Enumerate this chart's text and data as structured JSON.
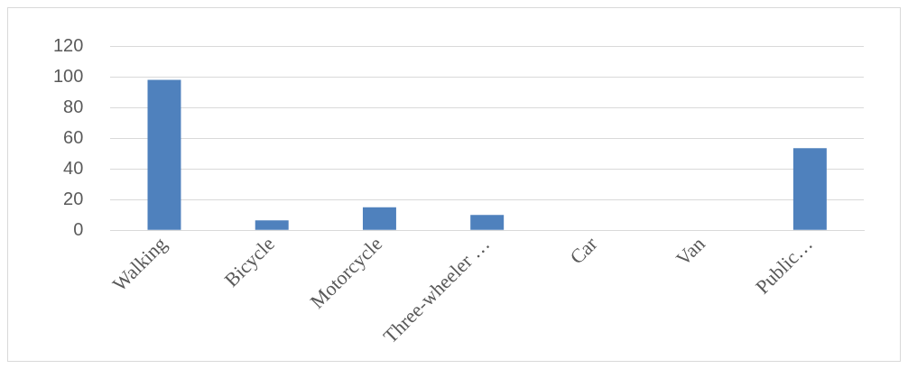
{
  "chart_data": {
    "type": "bar",
    "categories": [
      "Walking",
      "Bicycle",
      "Motorcycle",
      "Three-wheeler …",
      "Car",
      "Van",
      "Public…"
    ],
    "values": [
      98,
      6.5,
      15,
      10,
      0,
      0,
      53.5
    ],
    "color": "#4f81bd",
    "ylim": [
      0,
      120
    ],
    "yticks": [
      0,
      20,
      40,
      60,
      80,
      100,
      120
    ],
    "grid": "y"
  }
}
